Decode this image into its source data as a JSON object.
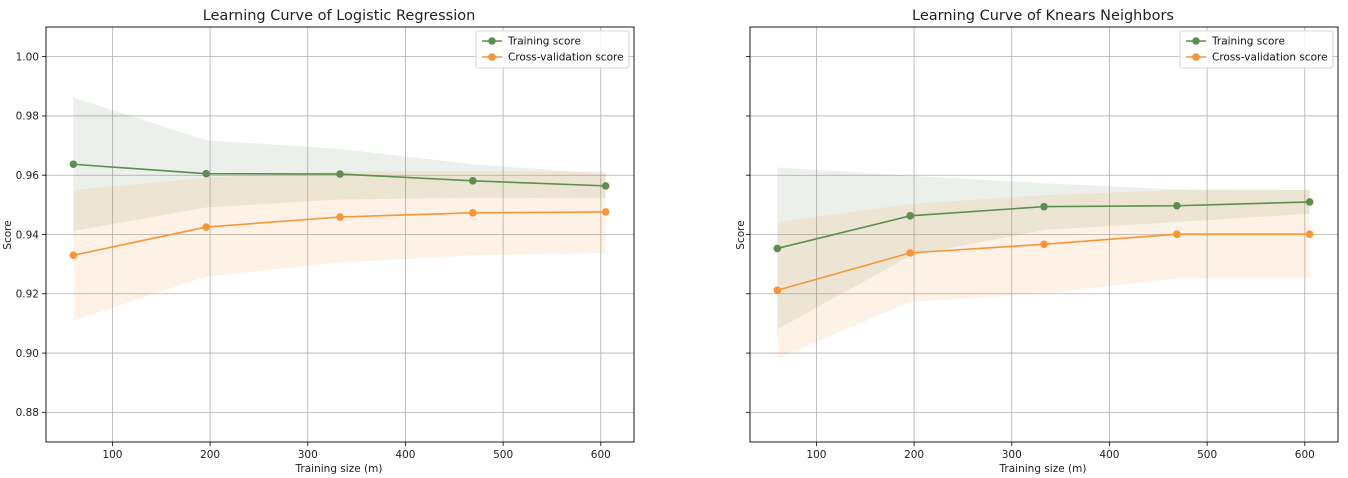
{
  "chart_data": [
    {
      "type": "line",
      "title": "Learning Curve of Logistic Regression",
      "xlabel": "Training size (m)",
      "ylabel": "Score",
      "xlim": [
        32,
        634
      ],
      "ylim": [
        0.87,
        1.01
      ],
      "xticks": [
        100,
        200,
        300,
        400,
        500,
        600
      ],
      "yticks": [
        0.88,
        0.9,
        0.92,
        0.94,
        0.96,
        0.98,
        1.0
      ],
      "ytick_labels": [
        "0.88",
        "0.90",
        "0.92",
        "0.94",
        "0.96",
        "0.98",
        "1.00"
      ],
      "show_ytick_labels": true,
      "grid": true,
      "legend_position": "top-right",
      "x": [
        60,
        196,
        333,
        469,
        605
      ],
      "series": [
        {
          "name": "Training score",
          "color": "#5a8f4f",
          "values": [
            0.9637,
            0.9605,
            0.9604,
            0.9581,
            0.9564
          ],
          "band_upper": [
            0.9862,
            0.9718,
            0.9689,
            0.9637,
            0.9605
          ],
          "band_lower": [
            0.9412,
            0.9491,
            0.9518,
            0.9524,
            0.9522
          ]
        },
        {
          "name": "Cross-validation score",
          "color": "#f89536",
          "values": [
            0.933,
            0.9425,
            0.9459,
            0.9473,
            0.9476
          ],
          "band_upper": [
            0.955,
            0.9592,
            0.9613,
            0.9613,
            0.9613
          ],
          "band_lower": [
            0.9109,
            0.9258,
            0.9305,
            0.933,
            0.9337
          ]
        }
      ]
    },
    {
      "type": "line",
      "title": "Learning Curve of Knears Neighbors",
      "xlabel": "Training size (m)",
      "ylabel": "Score",
      "xlim": [
        32,
        634
      ],
      "ylim": [
        0.87,
        1.01
      ],
      "xticks": [
        100,
        200,
        300,
        400,
        500,
        600
      ],
      "yticks": [
        0.88,
        0.9,
        0.92,
        0.94,
        0.96,
        0.98,
        1.0
      ],
      "ytick_labels": [
        "0.88",
        "0.90",
        "0.92",
        "0.94",
        "0.96",
        "0.98",
        "1.00"
      ],
      "show_ytick_labels": false,
      "grid": true,
      "legend_position": "top-right",
      "x": [
        60,
        196,
        333,
        469,
        605
      ],
      "series": [
        {
          "name": "Training score",
          "color": "#5a8f4f",
          "values": [
            0.9353,
            0.9463,
            0.9494,
            0.9497,
            0.951
          ],
          "band_upper": [
            0.9626,
            0.9598,
            0.9573,
            0.9552,
            0.955
          ],
          "band_lower": [
            0.908,
            0.9328,
            0.9415,
            0.9442,
            0.947
          ]
        },
        {
          "name": "Cross-validation score",
          "color": "#f89536",
          "values": [
            0.9212,
            0.9338,
            0.9367,
            0.9401,
            0.9401
          ],
          "band_upper": [
            0.9442,
            0.9503,
            0.9533,
            0.955,
            0.955
          ],
          "band_lower": [
            0.8982,
            0.9173,
            0.9201,
            0.9252,
            0.9252
          ]
        }
      ]
    }
  ]
}
